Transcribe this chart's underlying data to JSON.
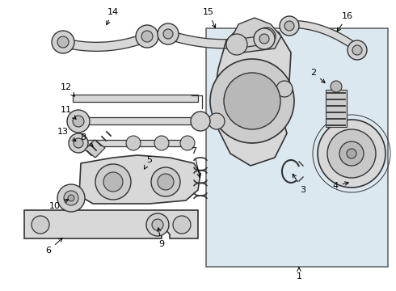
{
  "bg_color": "#ffffff",
  "line_color": "#333333",
  "fill_color": "#e8e8e8",
  "box_bg": "#dce8f0",
  "figsize": [
    4.9,
    3.6
  ],
  "dpi": 100
}
